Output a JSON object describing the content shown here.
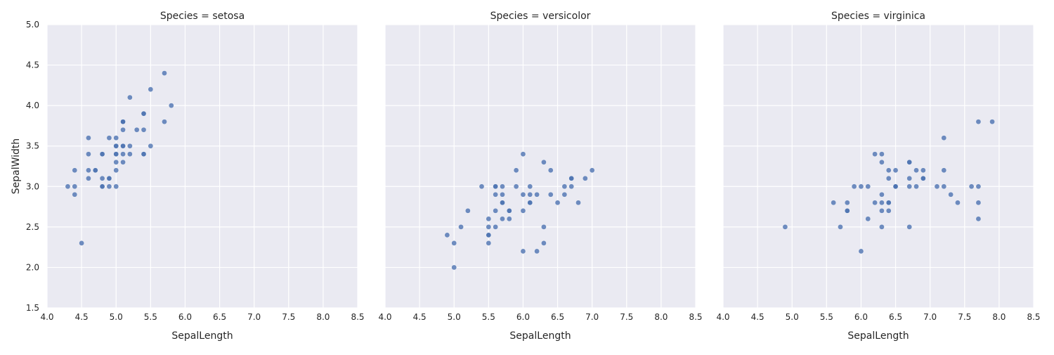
{
  "chart_data": {
    "type": "scatter",
    "xlabel": "SepalLength",
    "ylabel": "SepalWidth",
    "xlim": [
      4.0,
      8.5
    ],
    "ylim": [
      1.5,
      5.0
    ],
    "x_ticks": [
      "4.0",
      "4.5",
      "5.0",
      "5.5",
      "6.0",
      "6.5",
      "7.0",
      "7.5",
      "8.0",
      "8.5"
    ],
    "y_ticks": [
      "1.5",
      "2.0",
      "2.5",
      "3.0",
      "3.5",
      "4.0",
      "4.5",
      "5.0"
    ],
    "grid": true,
    "point_color": "#4c72b0",
    "background_color": "#eaeaf2",
    "facets": [
      {
        "title": "Species = setosa",
        "points": [
          [
            5.1,
            3.5
          ],
          [
            4.9,
            3.0
          ],
          [
            4.7,
            3.2
          ],
          [
            4.6,
            3.1
          ],
          [
            5.0,
            3.6
          ],
          [
            5.4,
            3.9
          ],
          [
            4.6,
            3.4
          ],
          [
            5.0,
            3.4
          ],
          [
            4.4,
            2.9
          ],
          [
            4.9,
            3.1
          ],
          [
            5.4,
            3.7
          ],
          [
            4.8,
            3.4
          ],
          [
            4.8,
            3.0
          ],
          [
            4.3,
            3.0
          ],
          [
            5.8,
            4.0
          ],
          [
            5.7,
            4.4
          ],
          [
            5.4,
            3.9
          ],
          [
            5.1,
            3.5
          ],
          [
            5.7,
            3.8
          ],
          [
            5.1,
            3.8
          ],
          [
            5.4,
            3.4
          ],
          [
            5.1,
            3.7
          ],
          [
            4.6,
            3.6
          ],
          [
            5.1,
            3.3
          ],
          [
            4.8,
            3.4
          ],
          [
            5.0,
            3.0
          ],
          [
            5.0,
            3.4
          ],
          [
            5.2,
            3.5
          ],
          [
            5.2,
            3.4
          ],
          [
            4.7,
            3.2
          ],
          [
            4.8,
            3.1
          ],
          [
            5.4,
            3.4
          ],
          [
            5.2,
            4.1
          ],
          [
            5.5,
            4.2
          ],
          [
            4.9,
            3.1
          ],
          [
            5.0,
            3.2
          ],
          [
            5.5,
            3.5
          ],
          [
            4.9,
            3.6
          ],
          [
            4.4,
            3.0
          ],
          [
            5.1,
            3.4
          ],
          [
            5.0,
            3.5
          ],
          [
            4.5,
            2.3
          ],
          [
            4.4,
            3.2
          ],
          [
            5.0,
            3.5
          ],
          [
            5.1,
            3.8
          ],
          [
            4.8,
            3.0
          ],
          [
            5.1,
            3.8
          ],
          [
            4.6,
            3.2
          ],
          [
            5.3,
            3.7
          ],
          [
            5.0,
            3.3
          ]
        ]
      },
      {
        "title": "Species = versicolor",
        "points": [
          [
            7.0,
            3.2
          ],
          [
            6.4,
            3.2
          ],
          [
            6.9,
            3.1
          ],
          [
            5.5,
            2.3
          ],
          [
            6.5,
            2.8
          ],
          [
            5.7,
            2.8
          ],
          [
            6.3,
            3.3
          ],
          [
            4.9,
            2.4
          ],
          [
            6.6,
            2.9
          ],
          [
            5.2,
            2.7
          ],
          [
            5.0,
            2.0
          ],
          [
            5.9,
            3.0
          ],
          [
            6.0,
            2.2
          ],
          [
            6.1,
            2.9
          ],
          [
            5.6,
            2.9
          ],
          [
            6.7,
            3.1
          ],
          [
            5.6,
            3.0
          ],
          [
            5.8,
            2.7
          ],
          [
            6.2,
            2.2
          ],
          [
            5.6,
            2.5
          ],
          [
            5.9,
            3.2
          ],
          [
            6.1,
            2.8
          ],
          [
            6.3,
            2.5
          ],
          [
            6.1,
            2.8
          ],
          [
            6.4,
            2.9
          ],
          [
            6.6,
            3.0
          ],
          [
            6.8,
            2.8
          ],
          [
            6.7,
            3.0
          ],
          [
            6.0,
            2.9
          ],
          [
            5.7,
            2.6
          ],
          [
            5.5,
            2.4
          ],
          [
            5.5,
            2.4
          ],
          [
            5.8,
            2.7
          ],
          [
            6.0,
            2.7
          ],
          [
            5.4,
            3.0
          ],
          [
            6.0,
            3.4
          ],
          [
            6.7,
            3.1
          ],
          [
            6.3,
            2.3
          ],
          [
            5.6,
            3.0
          ],
          [
            5.5,
            2.5
          ],
          [
            5.5,
            2.6
          ],
          [
            6.1,
            3.0
          ],
          [
            5.8,
            2.6
          ],
          [
            5.0,
            2.3
          ],
          [
            5.6,
            2.7
          ],
          [
            5.7,
            3.0
          ],
          [
            5.7,
            2.9
          ],
          [
            6.2,
            2.9
          ],
          [
            5.1,
            2.5
          ],
          [
            5.7,
            2.8
          ]
        ]
      },
      {
        "title": "Species = virginica",
        "points": [
          [
            6.3,
            3.3
          ],
          [
            5.8,
            2.7
          ],
          [
            7.1,
            3.0
          ],
          [
            6.3,
            2.9
          ],
          [
            6.5,
            3.0
          ],
          [
            7.6,
            3.0
          ],
          [
            4.9,
            2.5
          ],
          [
            7.3,
            2.9
          ],
          [
            6.7,
            2.5
          ],
          [
            7.2,
            3.6
          ],
          [
            6.5,
            3.2
          ],
          [
            6.4,
            2.7
          ],
          [
            6.8,
            3.0
          ],
          [
            5.7,
            2.5
          ],
          [
            5.8,
            2.8
          ],
          [
            6.4,
            3.2
          ],
          [
            6.5,
            3.0
          ],
          [
            7.7,
            3.8
          ],
          [
            7.7,
            2.6
          ],
          [
            6.0,
            2.2
          ],
          [
            6.9,
            3.2
          ],
          [
            5.6,
            2.8
          ],
          [
            7.7,
            2.8
          ],
          [
            6.3,
            2.7
          ],
          [
            6.7,
            3.3
          ],
          [
            7.2,
            3.2
          ],
          [
            6.2,
            2.8
          ],
          [
            6.1,
            3.0
          ],
          [
            6.4,
            2.8
          ],
          [
            7.2,
            3.0
          ],
          [
            7.4,
            2.8
          ],
          [
            7.9,
            3.8
          ],
          [
            6.4,
            2.8
          ],
          [
            6.3,
            2.8
          ],
          [
            6.1,
            2.6
          ],
          [
            7.7,
            3.0
          ],
          [
            6.3,
            3.4
          ],
          [
            6.4,
            3.1
          ],
          [
            6.0,
            3.0
          ],
          [
            6.9,
            3.1
          ],
          [
            6.7,
            3.1
          ],
          [
            6.9,
            3.1
          ],
          [
            5.8,
            2.7
          ],
          [
            6.8,
            3.2
          ],
          [
            6.7,
            3.3
          ],
          [
            6.7,
            3.0
          ],
          [
            6.3,
            2.5
          ],
          [
            6.5,
            3.0
          ],
          [
            6.2,
            3.4
          ],
          [
            5.9,
            3.0
          ]
        ]
      }
    ]
  }
}
